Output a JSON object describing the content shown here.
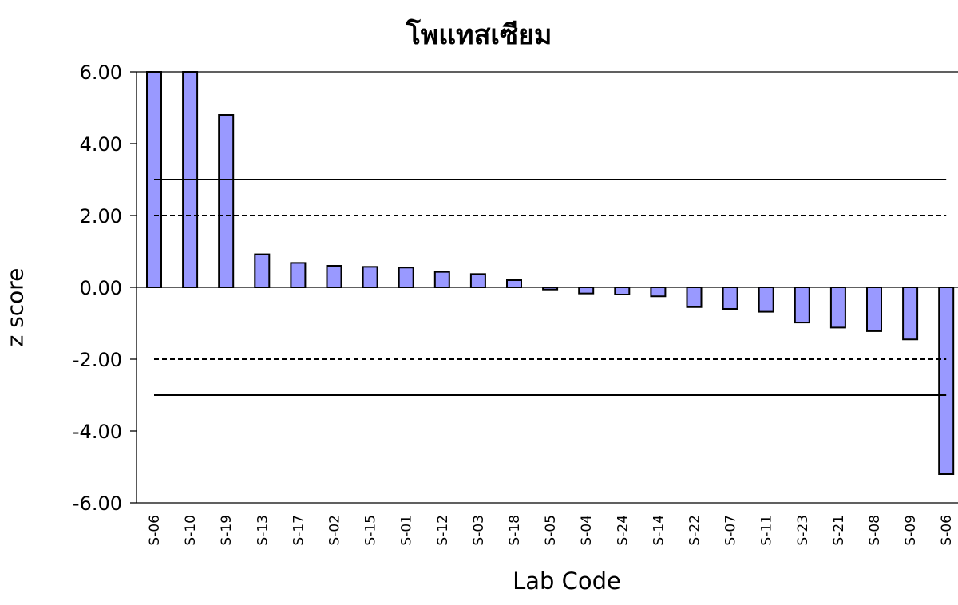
{
  "chart_data": {
    "type": "bar",
    "title": "โพแทสเซียม",
    "xlabel": "Lab Code",
    "ylabel": "z score",
    "ylim": [
      -6,
      6
    ],
    "yticks": [
      "6.00",
      "4.00",
      "2.00",
      "0.00",
      "-2.00",
      "-4.00",
      "-6.00"
    ],
    "categories": [
      "S-06",
      "S-10",
      "S-19",
      "S-13",
      "S-17",
      "S-02",
      "S-15",
      "S-01",
      "S-12",
      "S-03",
      "S-18",
      "S-05",
      "S-04",
      "S-24",
      "S-14",
      "S-22",
      "S-07",
      "S-11",
      "S-23",
      "S-21",
      "S-08",
      "S-09",
      "S-06"
    ],
    "values": [
      6.0,
      6.0,
      4.8,
      0.92,
      0.68,
      0.6,
      0.57,
      0.55,
      0.43,
      0.37,
      0.2,
      -0.06,
      -0.17,
      -0.2,
      -0.25,
      -0.55,
      -0.6,
      -0.68,
      -0.98,
      -1.12,
      -1.22,
      -1.45,
      -5.2
    ],
    "reference_lines": [
      {
        "value": 3,
        "style": "solid"
      },
      {
        "value": 2,
        "style": "dashed"
      },
      {
        "value": -2,
        "style": "dashed"
      },
      {
        "value": -3,
        "style": "solid"
      }
    ],
    "bar_color": "#9999ff",
    "grid": false,
    "legend": "none"
  }
}
